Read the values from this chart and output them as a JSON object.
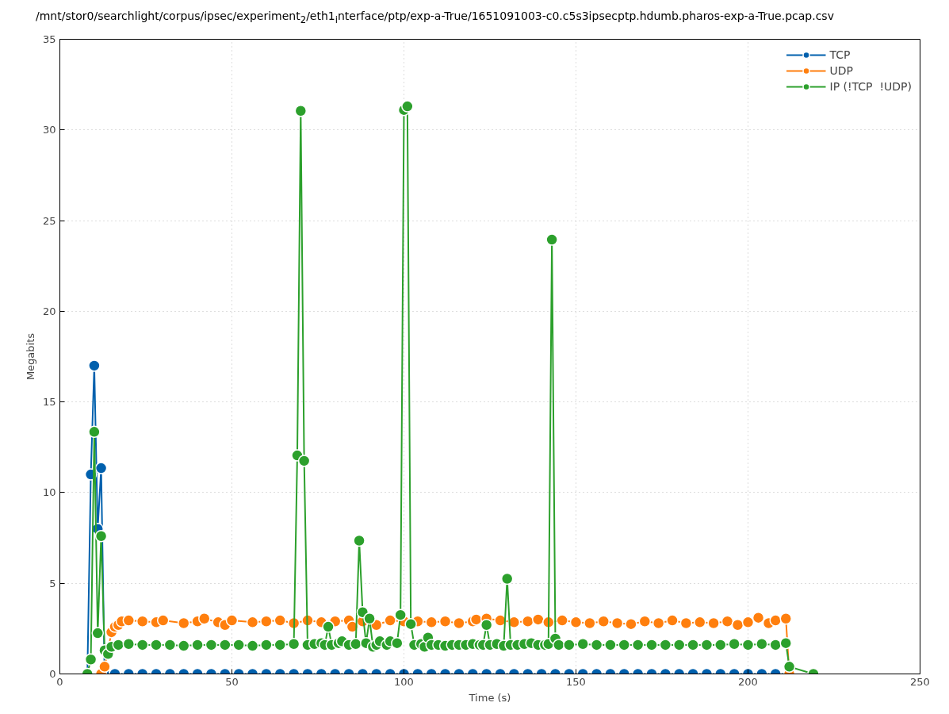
{
  "chart_data": {
    "type": "line",
    "title": "/mnt/stor0/searchlight/corpus/ipsec/experiment$_{2}$/eth1$_{i}$nterface/ptp/exp-a-True/1651091003-c0.c5s3ipsecptp.hdumb.pharos-exp-a-True.pcap.csv",
    "xlabel": "Time (s)",
    "ylabel": "Megabits",
    "xlim": [
      0,
      250
    ],
    "xticks": [
      0,
      50,
      100,
      150,
      200,
      250
    ],
    "ylim": [
      0,
      35
    ],
    "yticks": [
      0,
      5,
      10,
      15,
      20,
      25,
      30,
      35
    ],
    "grid": true,
    "legend": "top right",
    "marker": "circle",
    "line_style": "solid",
    "series": [
      {
        "name": "TCP",
        "color": "#0060ad",
        "x": [
          8,
          9,
          10,
          11,
          12,
          13,
          16,
          20,
          24,
          28,
          32,
          36,
          40,
          44,
          48,
          52,
          56,
          60,
          64,
          68,
          72,
          76,
          80,
          84,
          88,
          92,
          96,
          100,
          104,
          108,
          112,
          116,
          120,
          124,
          128,
          132,
          136,
          140,
          144,
          148,
          152,
          156,
          160,
          164,
          168,
          172,
          176,
          180,
          184,
          188,
          192,
          196,
          200,
          204,
          208,
          212
        ],
        "values": [
          0,
          11.0,
          17.0,
          8.0,
          11.35,
          0,
          0,
          0,
          0,
          0,
          0,
          0,
          0,
          0,
          0,
          0,
          0,
          0,
          0,
          0,
          0,
          0,
          0,
          0,
          0,
          0,
          0,
          0,
          0,
          0,
          0,
          0,
          0,
          0,
          0,
          0,
          0,
          0,
          0,
          0,
          0,
          0,
          0,
          0,
          0,
          0,
          0,
          0,
          0,
          0,
          0,
          0,
          0,
          0,
          0,
          0
        ]
      },
      {
        "name": "UDP",
        "color": "#ff7f0e",
        "x": [
          12,
          13,
          14,
          15,
          16,
          17,
          18,
          20,
          24,
          28,
          30,
          36,
          40,
          42,
          46,
          48,
          50,
          56,
          60,
          64,
          68,
          72,
          76,
          80,
          84,
          85,
          88,
          92,
          96,
          100,
          104,
          108,
          112,
          116,
          120,
          121,
          124,
          128,
          132,
          136,
          139,
          142,
          146,
          150,
          154,
          158,
          162,
          166,
          170,
          174,
          178,
          182,
          186,
          190,
          194,
          197,
          200,
          203,
          206,
          208,
          211,
          212
        ],
        "values": [
          0,
          0.4,
          1.3,
          2.3,
          2.6,
          2.7,
          2.9,
          2.95,
          2.9,
          2.85,
          2.95,
          2.8,
          2.9,
          3.05,
          2.85,
          2.7,
          2.95,
          2.85,
          2.9,
          2.95,
          2.8,
          2.95,
          2.85,
          2.9,
          2.95,
          2.6,
          2.9,
          2.7,
          2.95,
          2.9,
          2.9,
          2.85,
          2.9,
          2.8,
          2.9,
          3.0,
          3.05,
          2.95,
          2.85,
          2.9,
          3.0,
          2.85,
          2.95,
          2.85,
          2.8,
          2.9,
          2.8,
          2.75,
          2.9,
          2.8,
          2.95,
          2.8,
          2.85,
          2.8,
          2.9,
          2.7,
          2.85,
          3.1,
          2.8,
          2.95,
          3.05,
          0
        ]
      },
      {
        "name": "IP (!TCP  !UDP)",
        "color": "#2ca02c",
        "x": [
          8,
          9,
          10,
          11,
          12,
          13,
          14,
          15,
          17,
          20,
          24,
          28,
          32,
          36,
          40,
          44,
          48,
          52,
          56,
          60,
          64,
          68,
          69,
          70,
          71,
          72,
          74,
          76,
          77,
          78,
          79,
          81,
          82,
          84,
          86,
          87,
          88,
          89,
          90,
          91,
          92,
          93,
          95,
          96,
          98,
          99,
          100,
          101,
          102,
          103,
          105,
          106,
          107,
          108,
          110,
          112,
          114,
          116,
          118,
          120,
          122,
          123,
          124,
          125,
          127,
          129,
          130,
          131,
          133,
          135,
          137,
          139,
          141,
          142,
          143,
          144,
          145,
          148,
          152,
          156,
          160,
          164,
          168,
          172,
          176,
          180,
          184,
          188,
          192,
          196,
          200,
          204,
          208,
          211,
          212,
          219
        ],
        "values": [
          0,
          0.8,
          13.35,
          2.25,
          7.6,
          1.3,
          1.1,
          1.5,
          1.6,
          1.65,
          1.6,
          1.6,
          1.6,
          1.55,
          1.6,
          1.6,
          1.6,
          1.6,
          1.55,
          1.6,
          1.6,
          1.65,
          12.05,
          31.05,
          11.75,
          1.6,
          1.65,
          1.7,
          1.6,
          2.6,
          1.6,
          1.7,
          1.8,
          1.6,
          1.65,
          7.35,
          3.4,
          1.7,
          3.05,
          1.5,
          1.6,
          1.8,
          1.6,
          1.8,
          1.7,
          3.25,
          31.1,
          31.3,
          2.75,
          1.6,
          1.65,
          1.5,
          2.0,
          1.6,
          1.6,
          1.55,
          1.6,
          1.6,
          1.6,
          1.65,
          1.6,
          1.6,
          2.7,
          1.6,
          1.65,
          1.55,
          5.25,
          1.6,
          1.6,
          1.65,
          1.7,
          1.6,
          1.6,
          1.65,
          23.95,
          1.95,
          1.6,
          1.6,
          1.65,
          1.6,
          1.6,
          1.6,
          1.6,
          1.6,
          1.6,
          1.6,
          1.6,
          1.6,
          1.6,
          1.65,
          1.6,
          1.65,
          1.6,
          1.7,
          0.4,
          0
        ]
      }
    ]
  }
}
